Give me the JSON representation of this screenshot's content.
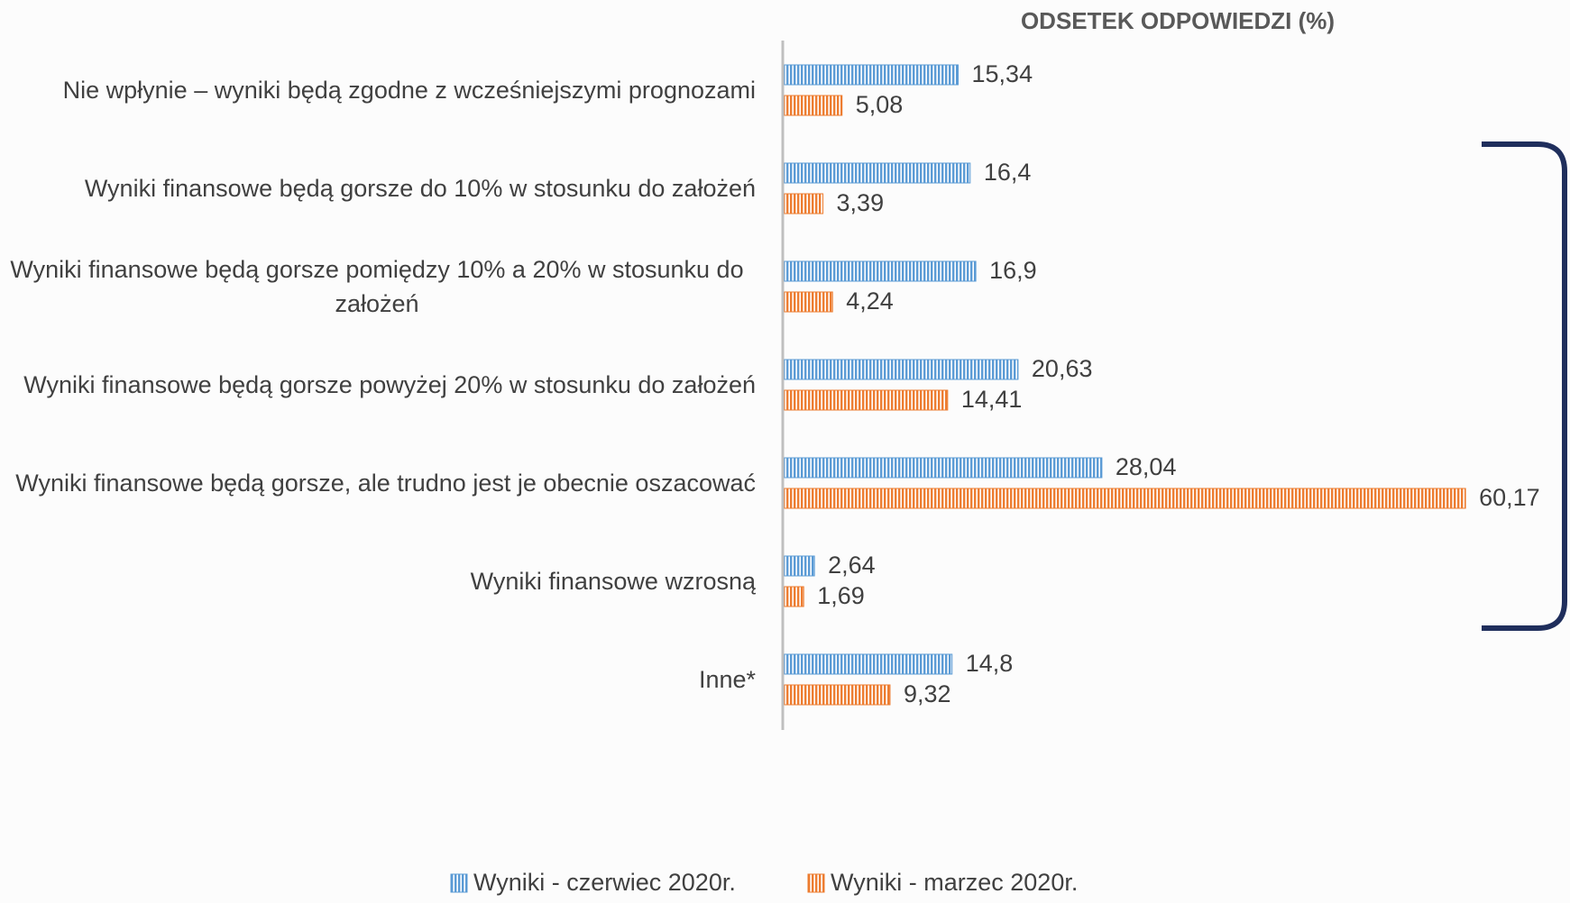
{
  "chart_data": {
    "type": "bar",
    "orientation": "horizontal",
    "title": "ODSETEK ODPOWIEDZI (%)",
    "categories": [
      "Nie wpłynie – wyniki będą zgodne z wcześniejszymi prognozami",
      "Wyniki finansowe będą gorsze do 10% w stosunku do założeń",
      "Wyniki finansowe będą gorsze pomiędzy 10% a 20% w stosunku do założeń",
      "Wyniki finansowe będą gorsze powyżej 20% w stosunku do założeń",
      "Wyniki finansowe będą gorsze, ale trudno jest je obecnie oszacować",
      "Wyniki finansowe wzrosną",
      "Inne*"
    ],
    "series": [
      {
        "name": "Wyniki - czerwiec 2020r.",
        "color": "#5b9bd5",
        "values": [
          15.34,
          16.4,
          16.9,
          20.63,
          28.04,
          2.64,
          14.8
        ],
        "value_labels": [
          "15,34",
          "16,4",
          "16,9",
          "20,63",
          "28,04",
          "2,64",
          "14,8"
        ]
      },
      {
        "name": "Wyniki - marzec 2020r.",
        "color": "#ed7d31",
        "values": [
          5.08,
          3.39,
          4.24,
          14.41,
          60.17,
          1.69,
          9.32
        ],
        "value_labels": [
          "5,08",
          "3,39",
          "4,24",
          "14,41",
          "60,17",
          "1,69",
          "9,32"
        ]
      }
    ],
    "legend": "bottom"
  }
}
